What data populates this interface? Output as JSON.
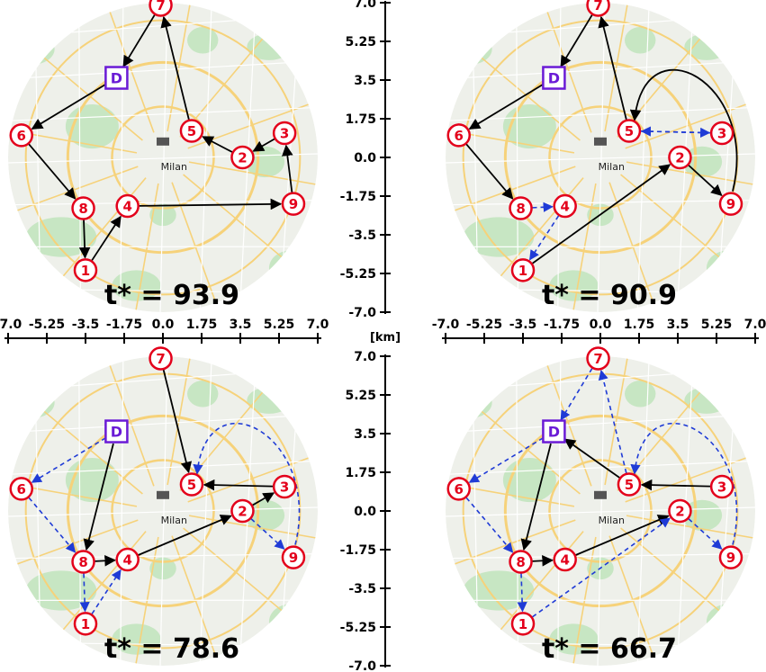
{
  "unit_label": "[km]",
  "city_label": "Milan",
  "axis": {
    "x_ticks": [
      "-7.0",
      "-5.25",
      "-3.5",
      "-1.75",
      "0.0",
      "1.75",
      "3.5",
      "5.25",
      "7.0"
    ],
    "y_ticks": [
      "7.0",
      "5.25",
      "3.5",
      "1.75",
      "0.0",
      "-1.75",
      "-3.5",
      "-5.25",
      "-7.0"
    ]
  },
  "depot": {
    "label": "D",
    "x": -2.1,
    "y": 3.6
  },
  "nodes": [
    {
      "id": "1",
      "x": -3.5,
      "y": -5.1
    },
    {
      "id": "2",
      "x": 3.6,
      "y": 0.0
    },
    {
      "id": "3",
      "x": 5.5,
      "y": 1.1
    },
    {
      "id": "4",
      "x": -1.6,
      "y": -2.2
    },
    {
      "id": "5",
      "x": 1.3,
      "y": 1.2
    },
    {
      "id": "6",
      "x": -6.4,
      "y": 1.0
    },
    {
      "id": "7",
      "x": -0.1,
      "y": 6.9
    },
    {
      "id": "8",
      "x": -3.6,
      "y": -2.3
    },
    {
      "id": "9",
      "x": 5.9,
      "y": -2.1
    }
  ],
  "panels": [
    {
      "tstar": "t* = 93.9",
      "edges": [
        {
          "from": "D",
          "to": "6",
          "style": "solid"
        },
        {
          "from": "6",
          "to": "8",
          "style": "solid"
        },
        {
          "from": "8",
          "to": "1",
          "style": "solid"
        },
        {
          "from": "1",
          "to": "4",
          "style": "solid"
        },
        {
          "from": "4",
          "to": "9",
          "style": "solid"
        },
        {
          "from": "9",
          "to": "3",
          "style": "solid"
        },
        {
          "from": "3",
          "to": "2",
          "style": "solid"
        },
        {
          "from": "2",
          "to": "5",
          "style": "solid"
        },
        {
          "from": "5",
          "to": "7",
          "style": "solid"
        },
        {
          "from": "7",
          "to": "D",
          "style": "solid"
        }
      ]
    },
    {
      "tstar": "t* = 90.9",
      "edges": [
        {
          "from": "D",
          "to": "6",
          "style": "solid"
        },
        {
          "from": "6",
          "to": "8",
          "style": "solid"
        },
        {
          "from": "8",
          "to": "4",
          "style": "dashed"
        },
        {
          "from": "4",
          "to": "1",
          "style": "dashed"
        },
        {
          "from": "1",
          "to": "2",
          "style": "solid"
        },
        {
          "from": "2",
          "to": "9",
          "style": "solid"
        },
        {
          "from": "9",
          "to": "5",
          "style": "solid",
          "curve": "9-5"
        },
        {
          "from": "5",
          "to": "3",
          "style": "dashed"
        },
        {
          "from": "3",
          "to": "5",
          "style": "dashed"
        },
        {
          "from": "5",
          "to": "7",
          "style": "solid"
        },
        {
          "from": "7",
          "to": "D",
          "style": "solid"
        }
      ]
    },
    {
      "tstar": "t* = 78.6",
      "edges": [
        {
          "from": "7",
          "to": "5",
          "style": "solid",
          "reverse": true
        },
        {
          "from": "D",
          "to": "8",
          "style": "solid"
        },
        {
          "from": "8",
          "to": "4",
          "style": "solid"
        },
        {
          "from": "4",
          "to": "2",
          "style": "solid"
        },
        {
          "from": "2",
          "to": "3",
          "style": "solid"
        },
        {
          "from": "3",
          "to": "5",
          "style": "solid"
        },
        {
          "from": "D",
          "to": "6",
          "style": "dashed"
        },
        {
          "from": "6",
          "to": "8",
          "style": "dashed"
        },
        {
          "from": "8",
          "to": "1",
          "style": "dashed"
        },
        {
          "from": "1",
          "to": "4",
          "style": "dashed"
        },
        {
          "from": "2",
          "to": "9",
          "style": "dashed"
        },
        {
          "from": "9",
          "to": "5",
          "style": "dashed",
          "curve": "9-5"
        }
      ]
    },
    {
      "tstar": "t* = 66.7",
      "edges": [
        {
          "from": "5",
          "to": "D",
          "style": "solid"
        },
        {
          "from": "D",
          "to": "8",
          "style": "solid"
        },
        {
          "from": "8",
          "to": "4",
          "style": "solid"
        },
        {
          "from": "4",
          "to": "2",
          "style": "solid"
        },
        {
          "from": "3",
          "to": "5",
          "style": "solid"
        },
        {
          "from": "D",
          "to": "6",
          "style": "dashed"
        },
        {
          "from": "6",
          "to": "8",
          "style": "dashed"
        },
        {
          "from": "8",
          "to": "1",
          "style": "dashed"
        },
        {
          "from": "1",
          "to": "2",
          "style": "dashed"
        },
        {
          "from": "2",
          "to": "9",
          "style": "dashed"
        },
        {
          "from": "9",
          "to": "5",
          "style": "dashed",
          "curve": "9-5"
        },
        {
          "from": "5",
          "to": "7",
          "style": "dashed"
        },
        {
          "from": "7",
          "to": "D",
          "style": "dashed"
        }
      ]
    }
  ],
  "colors": {
    "node_stroke": "#e3001b",
    "depot_stroke": "#6a1bd6",
    "solid_edge": "#000000",
    "dashed_edge": "#1f3bd6",
    "map_base": "#eef0ea",
    "map_park": "#c7e6c3",
    "map_road": "#f6d27a"
  }
}
